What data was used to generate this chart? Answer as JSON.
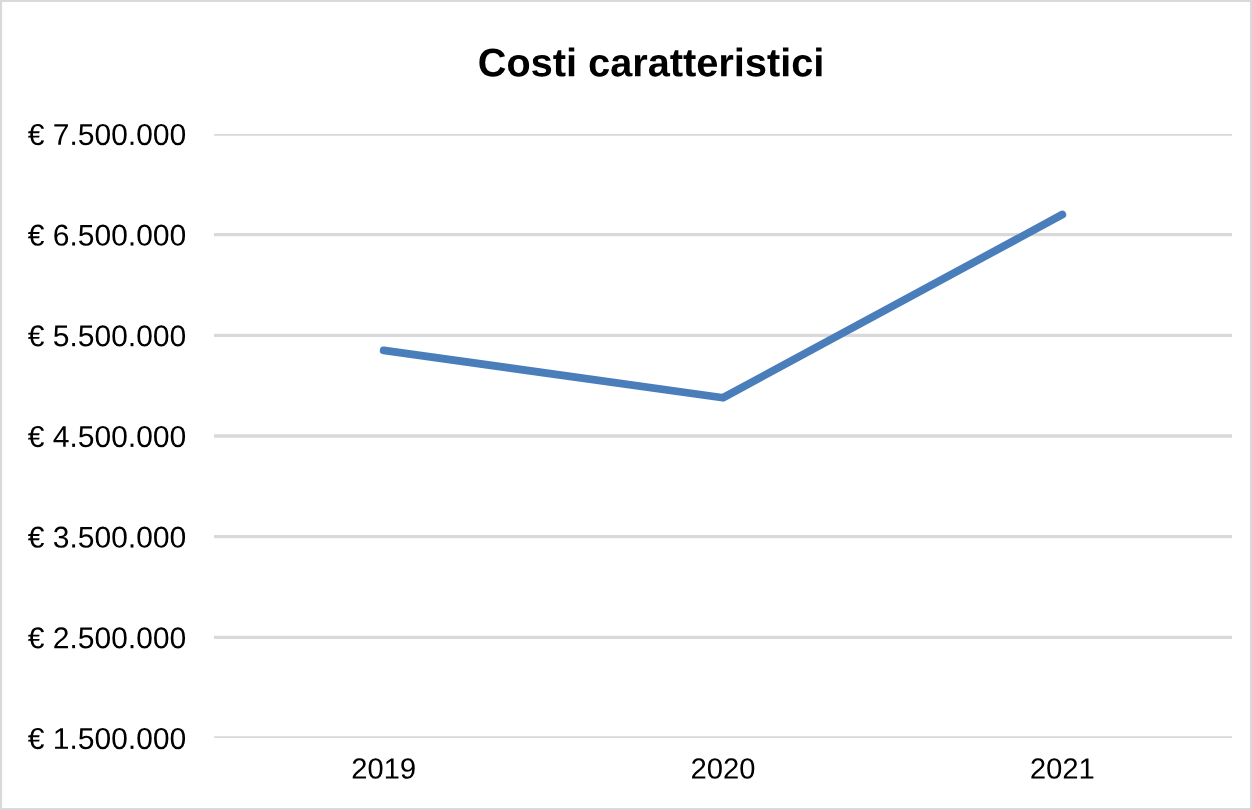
{
  "chart_data": {
    "type": "line",
    "title": "Costi caratteristici",
    "categories": [
      "2019",
      "2020",
      "2021"
    ],
    "series": [
      {
        "color": "#4a7ebb",
        "values": [
          5350000,
          4880000,
          6700000
        ]
      }
    ],
    "ylim": [
      1500000,
      7500000
    ],
    "yticks": [
      {
        "value": 1500000,
        "label": "€ 1.500.000"
      },
      {
        "value": 2500000,
        "label": "€ 2.500.000"
      },
      {
        "value": 3500000,
        "label": "€ 3.500.000"
      },
      {
        "value": 4500000,
        "label": "€ 4.500.000"
      },
      {
        "value": 5500000,
        "label": "€ 5.500.000"
      },
      {
        "value": 6500000,
        "label": "€ 6.500.000"
      },
      {
        "value": 7500000,
        "label": "€ 7.500.000"
      }
    ],
    "grid": "y",
    "marker": "none",
    "line_style": "solid"
  }
}
